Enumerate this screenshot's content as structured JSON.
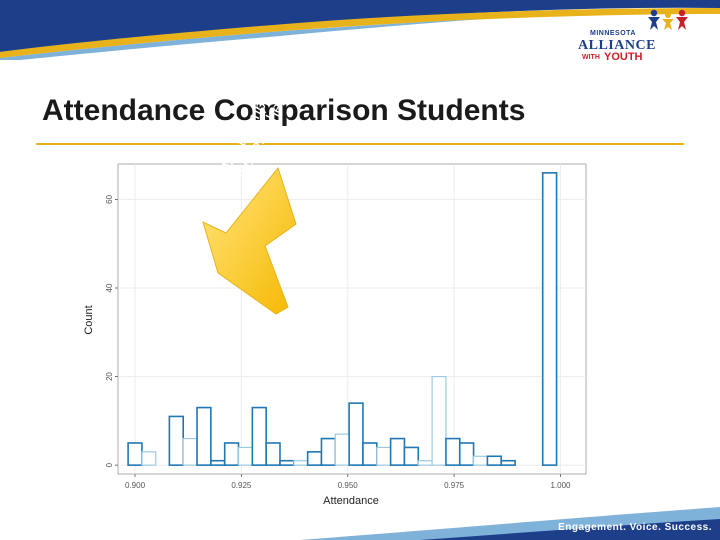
{
  "slide": {
    "title": "Attendance Comparison Students",
    "footer": "Engagement. Voice. Success.",
    "logo": {
      "line1": "MINNESOTA",
      "line2": "ALLIANCE",
      "line3": "WITH",
      "line4": "YOUTH"
    },
    "callout": {
      "line1": "Want comparison",
      "line2": "students here"
    },
    "colors": {
      "accent": "#e8b21a",
      "brand_blue": "#1d3f8a",
      "brand_red": "#c8202b",
      "bar_dark": "#1f78b4",
      "bar_light": "#9ecae1"
    }
  },
  "chart_data": {
    "type": "bar",
    "subtype": "histogram",
    "xlabel": "Attendance",
    "ylabel": "Count",
    "xlim": [
      0.896,
      1.006
    ],
    "ylim": [
      -2,
      68
    ],
    "xticks": [
      0.9,
      0.925,
      0.95,
      0.975,
      1.0
    ],
    "xtick_labels": [
      "0.900",
      "0.925",
      "0.950",
      "0.975",
      "1.000"
    ],
    "yticks": [
      0,
      20,
      40,
      60
    ],
    "grid": true,
    "bin_width": 0.00325,
    "bins": [
      {
        "x": 0.9,
        "count": 5,
        "style": "dark"
      },
      {
        "x": 0.90325,
        "count": 3,
        "style": "light"
      },
      {
        "x": 0.9097,
        "count": 11,
        "style": "dark"
      },
      {
        "x": 0.91295,
        "count": 6,
        "style": "light"
      },
      {
        "x": 0.9162,
        "count": 13,
        "style": "dark"
      },
      {
        "x": 0.91945,
        "count": 1,
        "style": "dark"
      },
      {
        "x": 0.9227,
        "count": 5,
        "style": "dark"
      },
      {
        "x": 0.92595,
        "count": 4,
        "style": "light"
      },
      {
        "x": 0.9292,
        "count": 13,
        "style": "dark"
      },
      {
        "x": 0.93245,
        "count": 5,
        "style": "dark"
      },
      {
        "x": 0.9357,
        "count": 1,
        "style": "dark"
      },
      {
        "x": 0.93895,
        "count": 1,
        "style": "light"
      },
      {
        "x": 0.9422,
        "count": 3,
        "style": "dark"
      },
      {
        "x": 0.94545,
        "count": 6,
        "style": "dark"
      },
      {
        "x": 0.9487,
        "count": 7,
        "style": "light"
      },
      {
        "x": 0.95195,
        "count": 14,
        "style": "dark"
      },
      {
        "x": 0.9552,
        "count": 5,
        "style": "dark"
      },
      {
        "x": 0.95845,
        "count": 4,
        "style": "light"
      },
      {
        "x": 0.9617,
        "count": 6,
        "style": "dark"
      },
      {
        "x": 0.96495,
        "count": 4,
        "style": "dark"
      },
      {
        "x": 0.9682,
        "count": 1,
        "style": "light"
      },
      {
        "x": 0.97145,
        "count": 20,
        "style": "light"
      },
      {
        "x": 0.9747,
        "count": 6,
        "style": "dark"
      },
      {
        "x": 0.97795,
        "count": 5,
        "style": "dark"
      },
      {
        "x": 0.9812,
        "count": 2,
        "style": "light"
      },
      {
        "x": 0.98445,
        "count": 2,
        "style": "dark"
      },
      {
        "x": 0.9877,
        "count": 1,
        "style": "dark"
      },
      {
        "x": 0.99745,
        "count": 66,
        "style": "dark"
      }
    ]
  }
}
